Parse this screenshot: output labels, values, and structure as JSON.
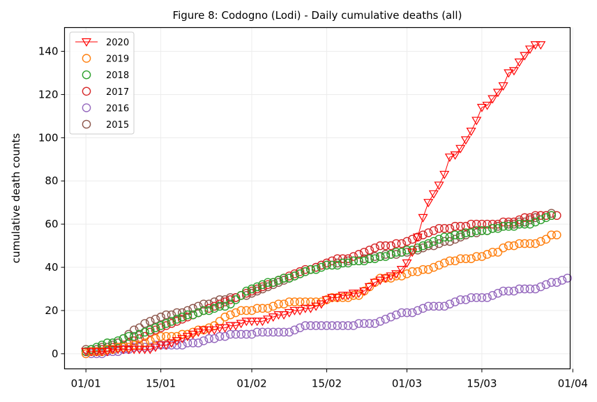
{
  "chart_data": {
    "type": "scatter",
    "title": "Figure 8: Codogno (Lodi) - Daily cumulative deaths (all)",
    "xlabel": "",
    "ylabel": "cumulative death counts",
    "x_start": "2020-01-01",
    "x_ticks": [
      {
        "label": "01/01",
        "day": 0
      },
      {
        "label": "15/01",
        "day": 14
      },
      {
        "label": "01/02",
        "day": 31
      },
      {
        "label": "15/02",
        "day": 45
      },
      {
        "label": "01/03",
        "day": 60
      },
      {
        "label": "15/03",
        "day": 74
      },
      {
        "label": "01/04",
        "day": 91
      }
    ],
    "y_ticks": [
      0,
      20,
      40,
      60,
      80,
      100,
      120,
      140
    ],
    "ylim": [
      -7,
      151
    ],
    "xlim": [
      -4,
      90.5
    ],
    "grid": true,
    "legend_position": "top-left",
    "series": [
      {
        "name": "2020",
        "color": "#ff0000",
        "marker": "triangle-down",
        "line": true,
        "values": [
          1,
          1,
          1,
          1,
          1,
          2,
          2,
          2,
          2,
          2,
          2,
          2,
          2,
          3,
          4,
          4,
          5,
          6,
          7,
          8,
          9,
          10,
          11,
          11,
          11,
          12,
          12,
          13,
          13,
          14,
          15,
          15,
          15,
          15,
          16,
          17,
          18,
          18,
          19,
          20,
          20,
          21,
          21,
          22,
          23,
          25,
          26,
          26,
          27,
          27,
          28,
          28,
          29,
          31,
          33,
          34,
          35,
          36,
          37,
          39,
          42,
          47,
          54,
          63,
          70,
          74,
          78,
          83,
          91,
          92,
          95,
          99,
          103,
          108,
          114,
          115,
          118,
          121,
          124,
          130,
          131,
          135,
          138,
          141,
          143,
          143
        ]
      },
      {
        "name": "2019",
        "color": "#ff7f0e",
        "marker": "circle",
        "line": false,
        "values": [
          0,
          1,
          1,
          1,
          2,
          2,
          3,
          3,
          3,
          4,
          4,
          5,
          6,
          7,
          8,
          8,
          8,
          8,
          9,
          9,
          10,
          11,
          11,
          12,
          13,
          15,
          17,
          18,
          19,
          20,
          20,
          20,
          21,
          21,
          21,
          22,
          23,
          23,
          24,
          24,
          24,
          24,
          24,
          24,
          24,
          25,
          26,
          26,
          26,
          26,
          27,
          27,
          29,
          31,
          33,
          35,
          35,
          35,
          36,
          36,
          37,
          38,
          38,
          39,
          39,
          40,
          41,
          42,
          43,
          43,
          44,
          44,
          44,
          45,
          45,
          46,
          47,
          47,
          49,
          50,
          50,
          51,
          51,
          51,
          51,
          52,
          53,
          55,
          55
        ]
      },
      {
        "name": "2018",
        "color": "#2ca02c",
        "marker": "circle",
        "line": false,
        "values": [
          1,
          2,
          3,
          4,
          5,
          5,
          6,
          7,
          8,
          8,
          9,
          10,
          11,
          12,
          13,
          14,
          15,
          16,
          17,
          18,
          18,
          19,
          20,
          20,
          21,
          22,
          22,
          23,
          25,
          27,
          29,
          30,
          31,
          32,
          33,
          33,
          34,
          35,
          35,
          36,
          37,
          38,
          39,
          39,
          40,
          41,
          41,
          41,
          42,
          42,
          43,
          43,
          43,
          44,
          44,
          45,
          45,
          46,
          47,
          47,
          48,
          48,
          49,
          50,
          51,
          52,
          53,
          54,
          54,
          55,
          55,
          56,
          56,
          57,
          57,
          57,
          58,
          58,
          59,
          59,
          59,
          60,
          60,
          60,
          61,
          62,
          63,
          64
        ]
      },
      {
        "name": "2017",
        "color": "#d62728",
        "marker": "circle",
        "line": false,
        "values": [
          1,
          1,
          1,
          2,
          2,
          3,
          3,
          4,
          5,
          6,
          7,
          8,
          10,
          11,
          12,
          13,
          14,
          15,
          16,
          17,
          18,
          19,
          20,
          21,
          22,
          23,
          24,
          25,
          26,
          27,
          28,
          29,
          30,
          31,
          32,
          33,
          34,
          35,
          36,
          37,
          38,
          39,
          39,
          40,
          41,
          42,
          43,
          44,
          44,
          44,
          45,
          46,
          47,
          48,
          49,
          50,
          50,
          50,
          51,
          51,
          52,
          53,
          54,
          55,
          56,
          57,
          58,
          58,
          58,
          59,
          59,
          59,
          60,
          60,
          60,
          60,
          60,
          60,
          61,
          61,
          61,
          62,
          63,
          63,
          64,
          64,
          64,
          64,
          64
        ]
      },
      {
        "name": "2016",
        "color": "#9467bd",
        "marker": "circle",
        "line": false,
        "values": [
          0,
          0,
          0,
          0,
          1,
          1,
          1,
          2,
          2,
          3,
          3,
          3,
          3,
          4,
          4,
          4,
          4,
          4,
          4,
          5,
          5,
          5,
          6,
          7,
          7,
          8,
          8,
          9,
          9,
          9,
          9,
          9,
          10,
          10,
          10,
          10,
          10,
          10,
          10,
          11,
          12,
          13,
          13,
          13,
          13,
          13,
          13,
          13,
          13,
          13,
          13,
          14,
          14,
          14,
          14,
          15,
          16,
          17,
          18,
          19,
          19,
          19,
          20,
          21,
          22,
          22,
          22,
          22,
          23,
          24,
          25,
          25,
          26,
          26,
          26,
          26,
          27,
          28,
          29,
          29,
          29,
          30,
          30,
          30,
          30,
          31,
          32,
          33,
          33,
          34,
          35
        ]
      },
      {
        "name": "2015",
        "color": "#8c564b",
        "marker": "circle",
        "line": false,
        "values": [
          2,
          2,
          2,
          3,
          3,
          4,
          5,
          7,
          9,
          11,
          12,
          14,
          15,
          16,
          17,
          18,
          18,
          19,
          19,
          20,
          21,
          22,
          23,
          23,
          24,
          25,
          25,
          26,
          26,
          27,
          27,
          28,
          29,
          30,
          31,
          32,
          33,
          34,
          35,
          36,
          37,
          38,
          39,
          40,
          41,
          41,
          41,
          42,
          42,
          43,
          43,
          43,
          44,
          44,
          45,
          45,
          46,
          46,
          46,
          47,
          47,
          48,
          48,
          49,
          50,
          50,
          51,
          52,
          52,
          53,
          54,
          55,
          56,
          56,
          57,
          57,
          58,
          59,
          59,
          60,
          60,
          61,
          61,
          62,
          63,
          64,
          64,
          65
        ]
      }
    ]
  }
}
